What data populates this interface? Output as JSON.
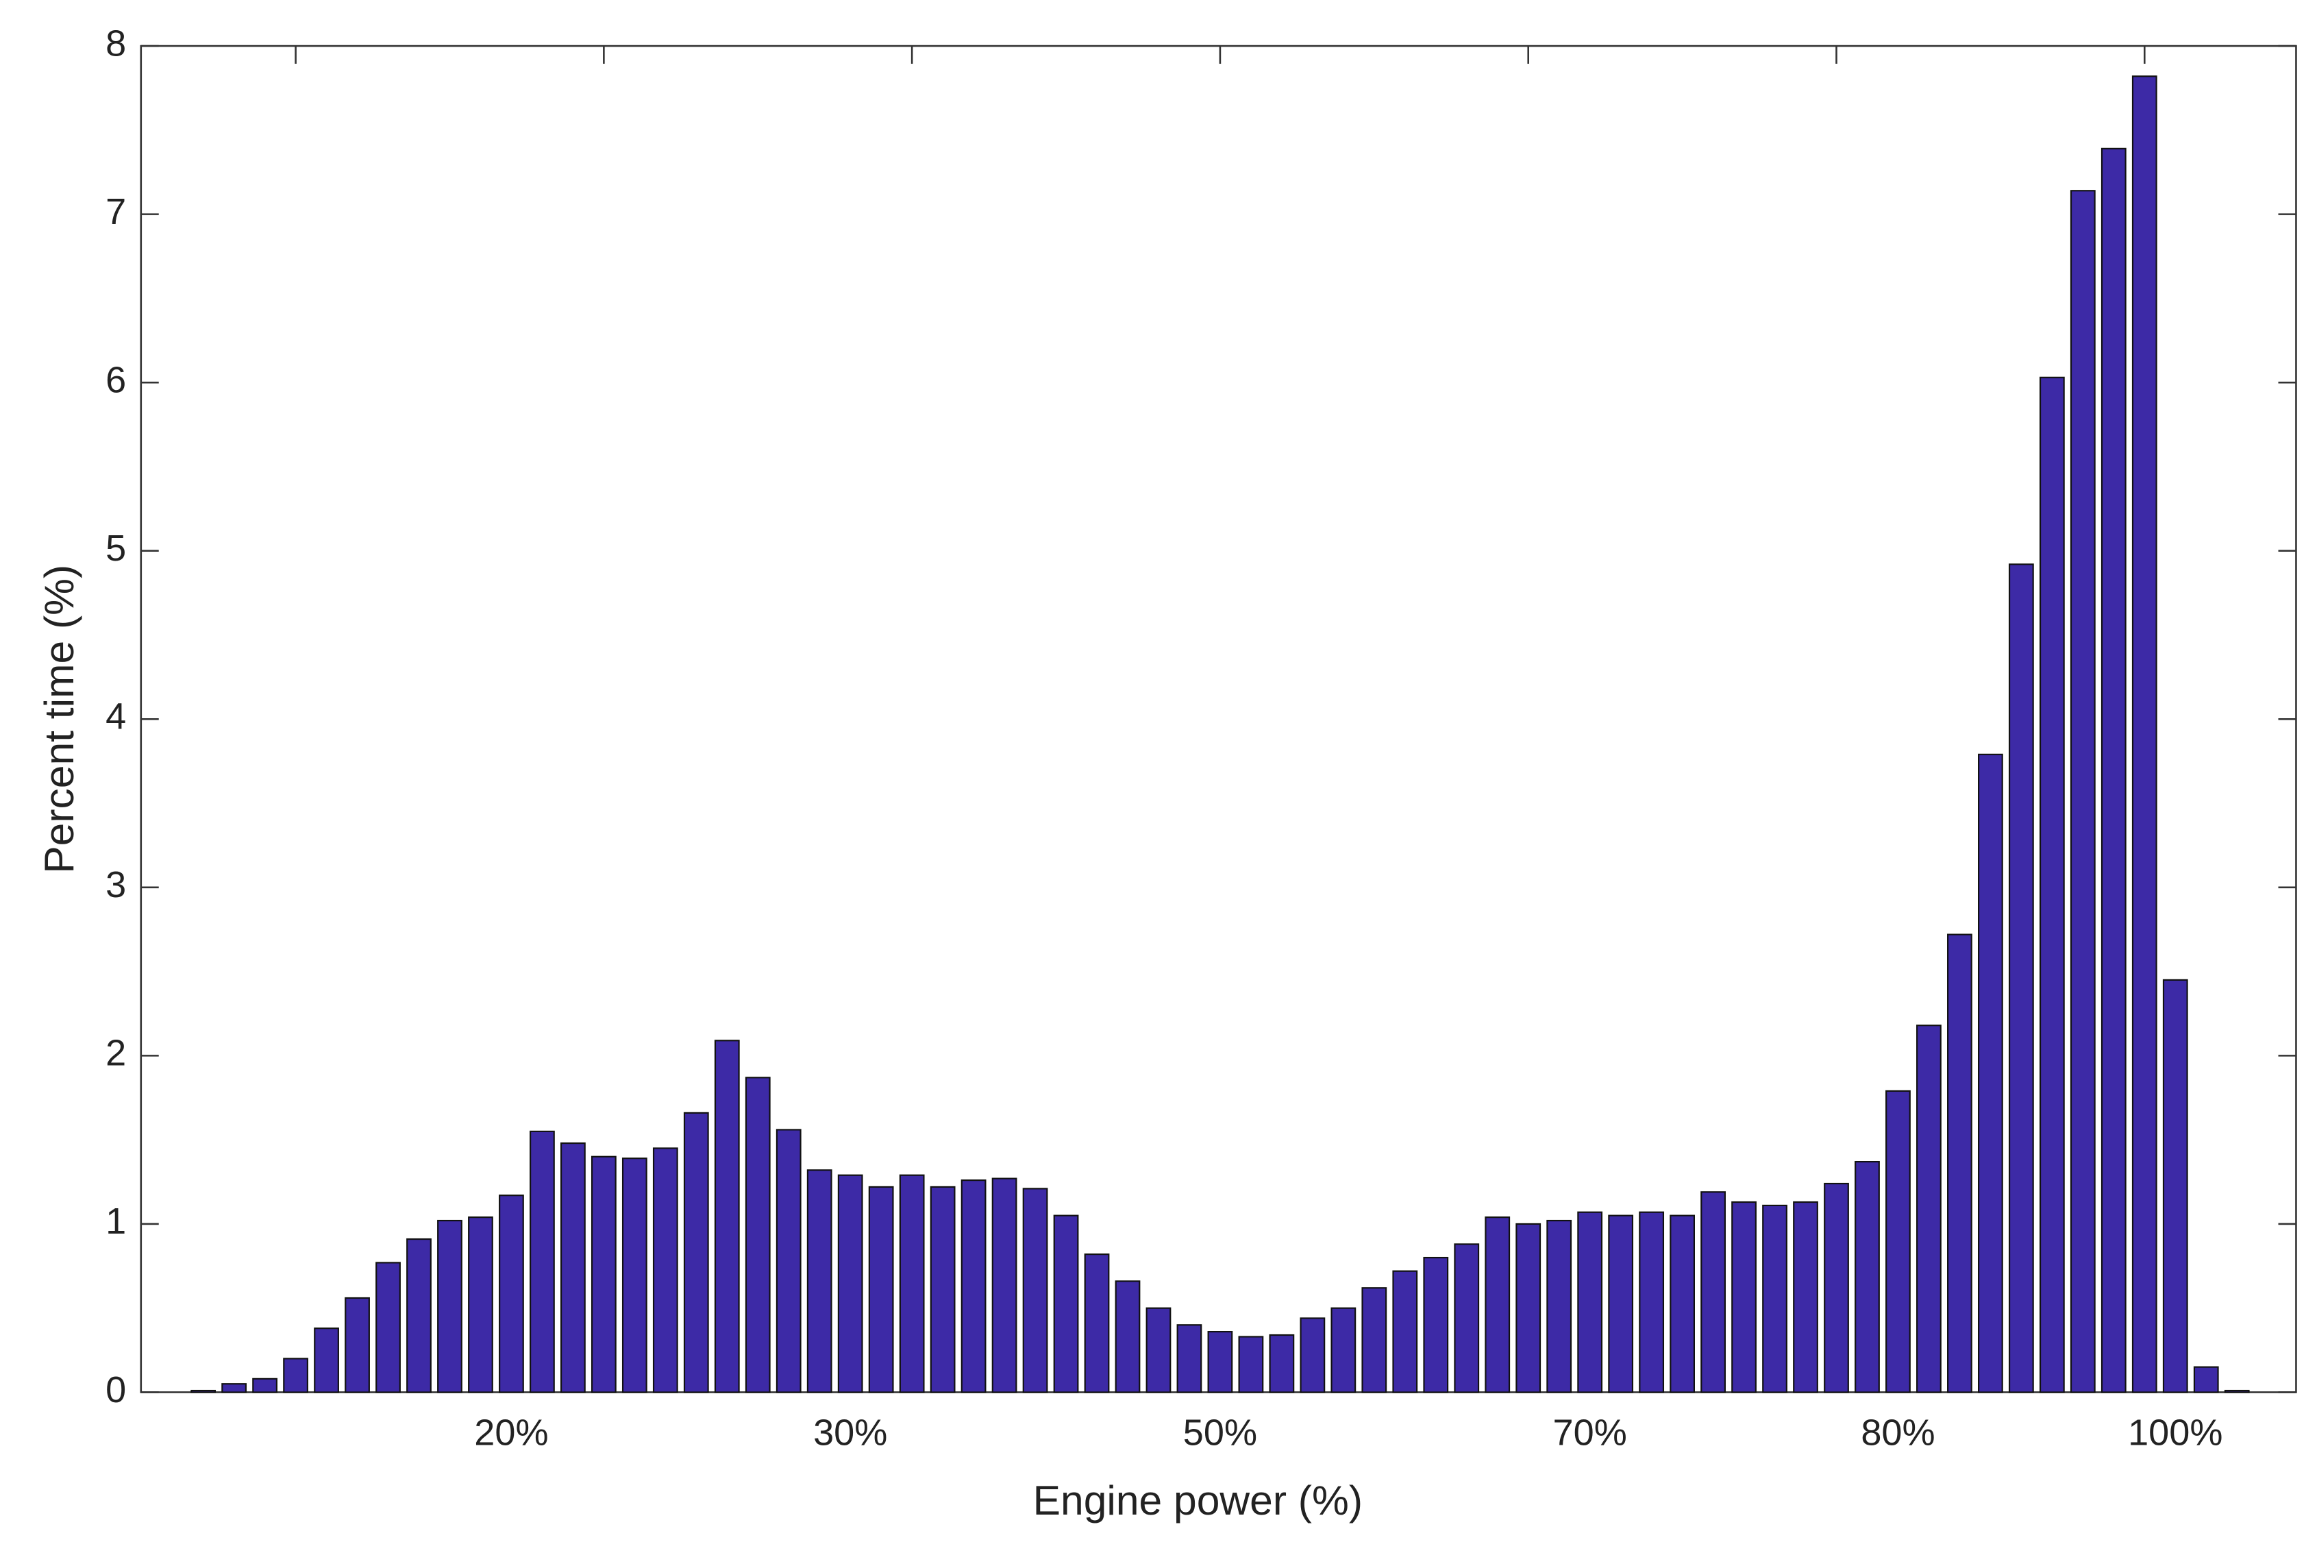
{
  "chart_data": {
    "type": "bar",
    "x_label": "Engine power (%)",
    "y_label": "Percent time (%)",
    "categories": [
      null,
      null,
      null,
      null,
      null,
      null,
      null,
      null,
      null,
      null,
      "20%",
      null,
      null,
      null,
      null,
      null,
      null,
      null,
      null,
      null,
      null,
      "30%",
      null,
      null,
      null,
      null,
      null,
      null,
      null,
      null,
      null,
      null,
      null,
      "50%",
      null,
      null,
      null,
      null,
      null,
      null,
      null,
      null,
      null,
      null,
      null,
      "70%",
      null,
      null,
      null,
      null,
      null,
      null,
      null,
      null,
      null,
      "80%",
      null,
      null,
      null,
      null,
      null,
      null,
      null,
      null,
      "100%",
      null,
      null
    ],
    "values": [
      0.01,
      0.05,
      0.08,
      0.2,
      0.38,
      0.56,
      0.77,
      0.91,
      1.02,
      1.04,
      1.17,
      1.55,
      1.48,
      1.4,
      1.39,
      1.45,
      1.66,
      2.09,
      1.87,
      1.56,
      1.32,
      1.29,
      1.22,
      1.29,
      1.22,
      1.26,
      1.27,
      1.21,
      1.05,
      0.82,
      0.66,
      0.5,
      0.4,
      0.36,
      0.33,
      0.34,
      0.44,
      0.5,
      0.62,
      0.72,
      0.8,
      0.88,
      1.04,
      1.0,
      1.02,
      1.07,
      1.05,
      1.07,
      1.05,
      1.19,
      1.13,
      1.11,
      1.13,
      1.24,
      1.37,
      1.79,
      2.18,
      2.72,
      3.79,
      4.92,
      6.03,
      7.14,
      7.39,
      7.82,
      2.45,
      0.15,
      0.01
    ],
    "color": "#3d2aa6",
    "ylim": [
      0,
      8
    ],
    "yticks": [
      0,
      1,
      2,
      3,
      4,
      5,
      6,
      7,
      8
    ],
    "grid": false
  }
}
